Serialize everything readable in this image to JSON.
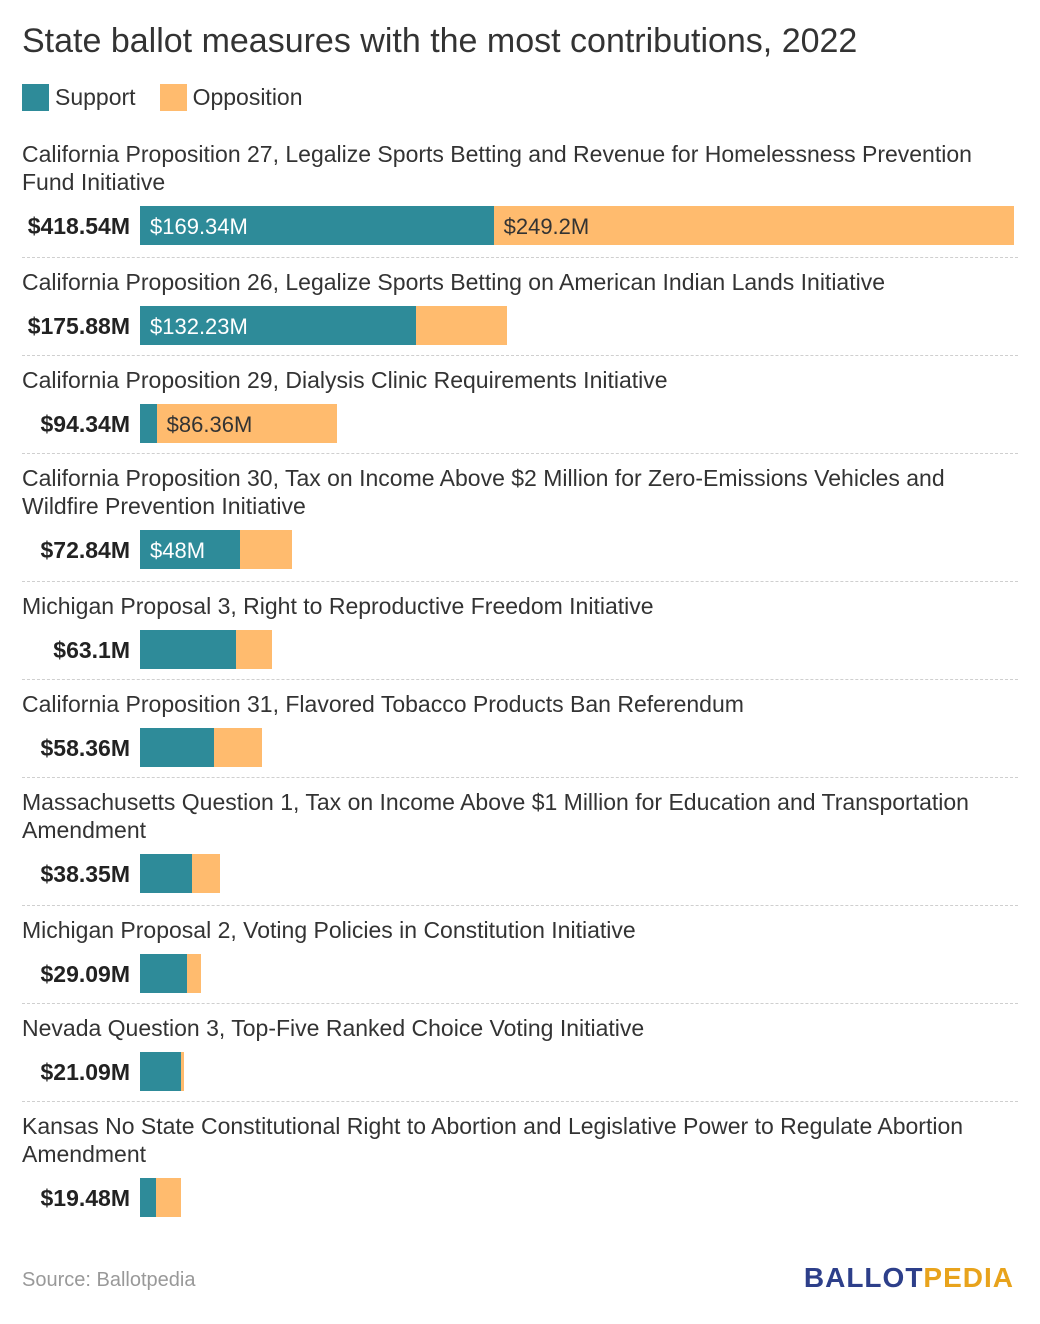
{
  "chart_data": {
    "type": "bar",
    "stacked": true,
    "orientation": "horizontal",
    "title": "State ballot measures with the most contributions, 2022",
    "legend": [
      {
        "name": "Support",
        "color": "#2e8b99"
      },
      {
        "name": "Opposition",
        "color": "#ffbb6e"
      }
    ],
    "units": "millions USD",
    "xlim": [
      0,
      418.54
    ],
    "rows": [
      {
        "label": "California Proposition 27, Legalize Sports Betting and Revenue for Homelessness Prevention Fund Initiative",
        "total_label": "$418.54M",
        "total": 418.54,
        "support": 169.34,
        "opposition": 249.2,
        "support_label": "$169.34M",
        "opposition_label": "$249.2M"
      },
      {
        "label": "California Proposition 26, Legalize Sports Betting on American Indian Lands Initiative",
        "total_label": "$175.88M",
        "total": 175.88,
        "support": 132.23,
        "opposition": 43.65,
        "support_label": "$132.23M",
        "opposition_label": ""
      },
      {
        "label": "California Proposition 29, Dialysis Clinic Requirements Initiative",
        "total_label": "$94.34M",
        "total": 94.34,
        "support": 7.98,
        "opposition": 86.36,
        "support_label": "",
        "opposition_label": "$86.36M"
      },
      {
        "label": "California Proposition 30, Tax on Income Above $2 Million for Zero-Emissions Vehicles and Wildfire Prevention Initiative",
        "total_label": "$72.84M",
        "total": 72.84,
        "support": 48,
        "opposition": 24.84,
        "support_label": "$48M",
        "opposition_label": ""
      },
      {
        "label": "Michigan Proposal 3, Right to Reproductive Freedom Initiative",
        "total_label": "$63.1M",
        "total": 63.1,
        "support": 46,
        "opposition": 17.1,
        "support_label": "",
        "opposition_label": ""
      },
      {
        "label": "California Proposition 31, Flavored Tobacco Products Ban Referendum",
        "total_label": "$58.36M",
        "total": 58.36,
        "support": 35.5,
        "opposition": 22.86,
        "support_label": "",
        "opposition_label": ""
      },
      {
        "label": "Massachusetts Question 1, Tax on Income Above $1 Million for Education and Transportation Amendment",
        "total_label": "$38.35M",
        "total": 38.35,
        "support": 25,
        "opposition": 13.35,
        "support_label": "",
        "opposition_label": ""
      },
      {
        "label": "Michigan Proposal 2, Voting Policies in Constitution Initiative",
        "total_label": "$29.09M",
        "total": 29.09,
        "support": 22.4,
        "opposition": 6.69,
        "support_label": "",
        "opposition_label": ""
      },
      {
        "label": "Nevada Question 3, Top-Five Ranked Choice Voting Initiative",
        "total_label": "$21.09M",
        "total": 21.09,
        "support": 19.4,
        "opposition": 1.69,
        "support_label": "",
        "opposition_label": ""
      },
      {
        "label": "Kansas No State Constitutional Right to Abortion and Legislative Power to Regulate Abortion Amendment",
        "total_label": "$19.48M",
        "total": 19.48,
        "support": 7.7,
        "opposition": 11.78,
        "support_label": "",
        "opposition_label": ""
      }
    ]
  },
  "footer": {
    "source": "Source: Ballotpedia",
    "brand_part1": "BALLOT",
    "brand_part2": "PEDIA"
  }
}
